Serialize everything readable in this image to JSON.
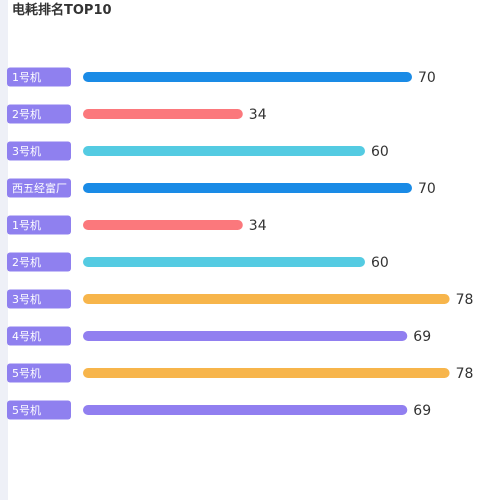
{
  "chart_data": {
    "type": "bar",
    "orientation": "horizontal",
    "title": "电耗排名TOP10",
    "categories": [
      "1号机",
      "2号机",
      "3号机",
      "西五经富厂",
      "1号机",
      "2号机",
      "3号机",
      "4号机",
      "5号机",
      "5号机"
    ],
    "values": [
      70,
      34,
      60,
      70,
      34,
      60,
      78,
      69,
      78,
      69
    ],
    "bar_colors": [
      "#1a8be6",
      "#fb787c",
      "#54cbe2",
      "#1a8be6",
      "#fb787c",
      "#54cbe2",
      "#f7b54b",
      "#917ff0",
      "#f7b54b",
      "#917ff0"
    ],
    "label_badge_color": "#8f80ef",
    "xlim": [
      0,
      80
    ],
    "grid": false,
    "show_value_labels": true
  }
}
